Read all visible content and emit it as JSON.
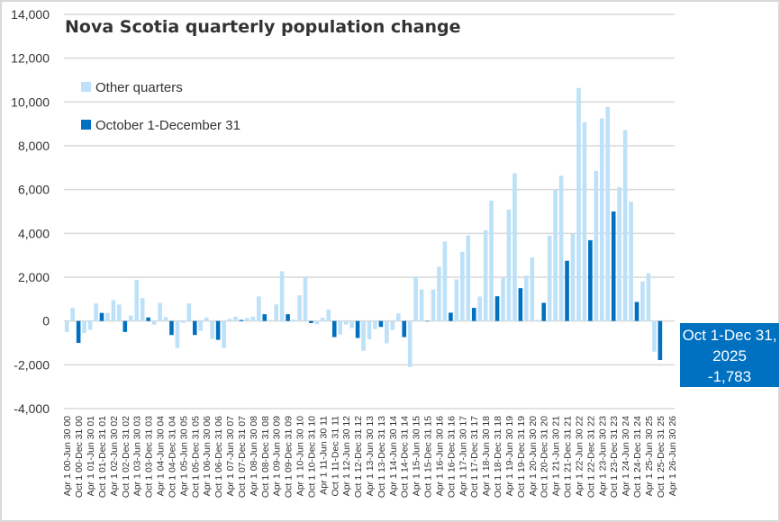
{
  "chart_data": {
    "type": "bar",
    "title": "Nova Scotia quarterly population change",
    "xlabel": "",
    "ylabel": "",
    "ylim": [
      -4000,
      14000
    ],
    "y_ticks": [
      -4000,
      -2000,
      0,
      2000,
      4000,
      6000,
      8000,
      10000,
      12000,
      14000
    ],
    "y_tick_labels": [
      "-4,000",
      "-2,000",
      "0",
      "2,000",
      "4,000",
      "6,000",
      "8,000",
      "10,000",
      "12,000",
      "14,000"
    ],
    "grid": true,
    "legend_position": "top-left",
    "legend": [
      "Other quarters",
      "October 1-December 31"
    ],
    "colors": {
      "other": "#BDE1F8",
      "q4": "#0070C0",
      "grid": "#D9D9D9",
      "text": "#333333"
    },
    "first_quarter": "Apr 1 00-Jun 30 00",
    "x_tick_labels": [
      "Apr 1 00-Jun 30 00",
      "Oct 1 00-Dec 31 00",
      "Apr 1 01-Jun 30 01",
      "Oct 1 01-Dec 31 01",
      "Apr 1 02-Jun 30 02",
      "Oct 1 02-Dec 31 02",
      "Apr 1 03-Jun 30 03",
      "Oct 1 03-Dec 31 03",
      "Apr 1 04-Jun 30 04",
      "Oct 1 04-Dec 31 04",
      "Apr 1 05-Jun 30 05",
      "Oct 1 05-Dec 31 05",
      "Apr 1 06-Jun 30 06",
      "Oct 1 06-Dec 31 06",
      "Apr 1 07-Jun 30 07",
      "Oct 1 07-Dec 31 07",
      "Apr 1 08-Jun 30 08",
      "Oct 1 08-Dec 31 08",
      "Apr 1 09-Jun 30 09",
      "Oct 1 09-Dec 31 09",
      "Apr 1 10-Jun 30 10",
      "Oct 1 10-Dec 31 10",
      "Apr 1 11-Jun 30 11",
      "Oct 1 11-Dec 31 11",
      "Apr 1 12-Jun 30 12",
      "Oct 1 12-Dec 31 12",
      "Apr 1 13-Jun 30 13",
      "Oct 1 13-Dec 31 13",
      "Apr 1 14-Jun 30 14",
      "Oct 1 14-Dec 31 14",
      "Apr 1 15-Jun 30 15",
      "Oct 1 15-Dec 31 15",
      "Apr 1 16-Jun 30 16",
      "Oct 1 16-Dec 31 16",
      "Apr 1 17-Jun 30 17",
      "Oct 1 17-Dec 31 17",
      "Apr 1 18-Jun 30 18",
      "Oct 1 18-Dec 31 18",
      "Apr 1 19-Jun 30 19",
      "Oct 1 19-Dec 31 19",
      "Apr 1 20-Jun 30 20",
      "Oct 1 20-Dec 31 20",
      "Apr 1 21-Jun 30 21",
      "Oct 1 21-Dec 31 21",
      "Apr 1 22-Jun 30 22",
      "Oct 1 22-Dec 31 22",
      "Apr 1 23-Jun 30 23",
      "Oct 1 23-Dec 31 23",
      "Apr 1 24-Jun 30 24",
      "Oct 1 24-Dec 31 24",
      "Apr 1 25-Jun 30 25",
      "Oct 1 25-Dec 31 25",
      "Apr 1 26-Jun 30 26"
    ],
    "values": [
      -500,
      600,
      -1000,
      -550,
      -400,
      800,
      370,
      370,
      950,
      750,
      -500,
      250,
      1880,
      1050,
      160,
      -170,
      830,
      180,
      -640,
      -1230,
      -80,
      800,
      -640,
      -450,
      160,
      -820,
      -860,
      -1230,
      100,
      200,
      50,
      140,
      200,
      1120,
      310,
      50,
      760,
      2270,
      310,
      70,
      1170,
      2000,
      -95,
      -150,
      150,
      520,
      -735,
      -610,
      -160,
      -330,
      -775,
      -1360,
      -840,
      -370,
      -270,
      -1020,
      -410,
      350,
      -735,
      -2100,
      2000,
      1440,
      0,
      1440,
      2480,
      3630,
      380,
      1900,
      3160,
      3910,
      600,
      1120,
      4150,
      5500,
      1130,
      1970,
      5090,
      6750,
      1500,
      2070,
      2910,
      50,
      830,
      3900,
      5980,
      6630,
      2750,
      3990,
      10640,
      9080,
      3690,
      6850,
      9250,
      9780,
      5000,
      6110,
      8720,
      5450,
      870,
      1810,
      2180,
      -1400,
      -1783,
      null,
      null
    ],
    "annotation": {
      "line1": "Oct 1-Dec 31,",
      "line2": "2025",
      "line3": "-1,783"
    }
  }
}
